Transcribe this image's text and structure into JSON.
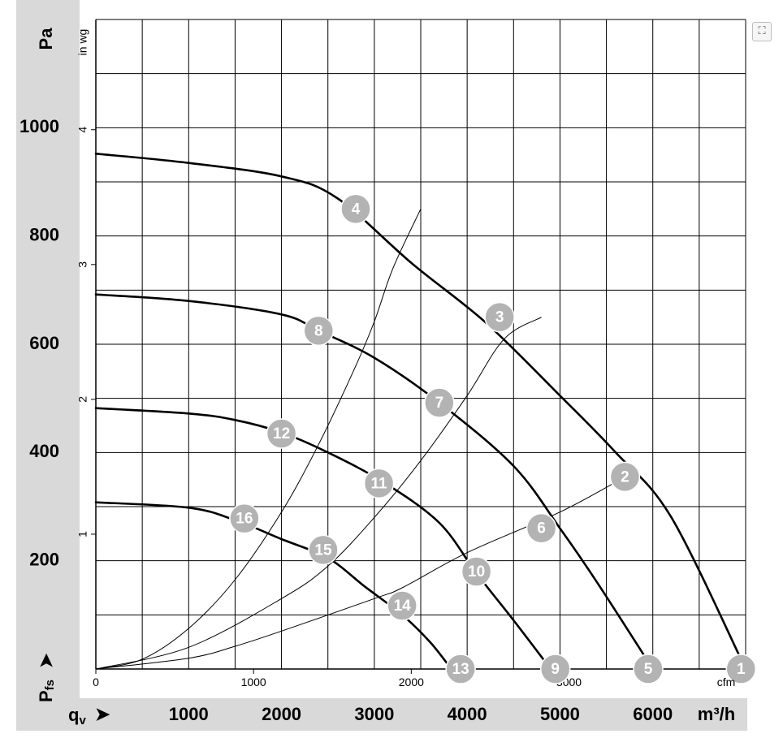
{
  "chart_data": {
    "type": "line",
    "x_axis": {
      "label": "qv",
      "unit": "m³/h",
      "ticks": [
        1000,
        2000,
        3000,
        4000,
        5000,
        6000
      ],
      "range": [
        0,
        7000
      ],
      "secondary": {
        "unit": "cfm",
        "ticks": [
          0,
          1000,
          2000,
          3000
        ]
      }
    },
    "y_axis": {
      "label": "Pfs",
      "unit": "Pa",
      "ticks": [
        200,
        400,
        600,
        800,
        1000
      ],
      "range": [
        0,
        1200
      ],
      "secondary": {
        "unit": "in wg",
        "ticks": [
          1,
          2,
          3,
          4
        ]
      }
    },
    "grid": true,
    "curves": [
      {
        "points": [
          [
            0,
            952
          ],
          [
            1000,
            935
          ],
          [
            2000,
            910
          ],
          [
            2600,
            870
          ],
          [
            3400,
            750
          ],
          [
            4200,
            640
          ],
          [
            5000,
            505
          ],
          [
            5600,
            400
          ],
          [
            6200,
            280
          ],
          [
            7000,
            0
          ]
        ]
      },
      {
        "points": [
          [
            0,
            692
          ],
          [
            1000,
            680
          ],
          [
            2000,
            655
          ],
          [
            2400,
            625
          ],
          [
            3000,
            575
          ],
          [
            3700,
            492
          ],
          [
            4500,
            375
          ],
          [
            5000,
            260
          ],
          [
            5400,
            160
          ],
          [
            6000,
            0
          ]
        ]
      },
      {
        "points": [
          [
            0,
            482
          ],
          [
            1000,
            472
          ],
          [
            1500,
            460
          ],
          [
            2000,
            437
          ],
          [
            2500,
            400
          ],
          [
            3100,
            345
          ],
          [
            3700,
            270
          ],
          [
            4100,
            177
          ],
          [
            4500,
            90
          ],
          [
            4900,
            0
          ]
        ]
      },
      {
        "points": [
          [
            0,
            308
          ],
          [
            1000,
            298
          ],
          [
            1500,
            275
          ],
          [
            2000,
            240
          ],
          [
            2500,
            205
          ],
          [
            2900,
            152
          ],
          [
            3300,
            100
          ],
          [
            3600,
            50
          ],
          [
            3830,
            0
          ]
        ]
      }
    ],
    "system_lines": [
      {
        "points": [
          [
            0,
            0
          ],
          [
            500,
            18
          ],
          [
            1000,
            75
          ],
          [
            1500,
            165
          ],
          [
            2000,
            290
          ],
          [
            2400,
            415
          ],
          [
            2800,
            560
          ],
          [
            3000,
            642
          ],
          [
            3200,
            740
          ],
          [
            3500,
            850
          ]
        ]
      },
      {
        "points": [
          [
            0,
            0
          ],
          [
            1000,
            40
          ],
          [
            2000,
            130
          ],
          [
            2500,
            190
          ],
          [
            3000,
            280
          ],
          [
            3500,
            385
          ],
          [
            4000,
            505
          ],
          [
            4400,
            610
          ],
          [
            4800,
            650
          ]
        ]
      },
      {
        "points": [
          [
            0,
            0
          ],
          [
            1000,
            20
          ],
          [
            1500,
            42
          ],
          [
            2000,
            70
          ],
          [
            3000,
            130
          ],
          [
            3300,
            150
          ],
          [
            4000,
            215
          ],
          [
            5000,
            290
          ],
          [
            5700,
            355
          ]
        ]
      }
    ],
    "operating_points": [
      {
        "label": "1",
        "x": 6950,
        "y": 0
      },
      {
        "label": "2",
        "x": 5700,
        "y": 355
      },
      {
        "label": "3",
        "x": 4350,
        "y": 650
      },
      {
        "label": "4",
        "x": 2800,
        "y": 850
      },
      {
        "label": "5",
        "x": 5950,
        "y": 0
      },
      {
        "label": "6",
        "x": 4800,
        "y": 260
      },
      {
        "label": "7",
        "x": 3700,
        "y": 492
      },
      {
        "label": "8",
        "x": 2400,
        "y": 625
      },
      {
        "label": "9",
        "x": 4950,
        "y": 0
      },
      {
        "label": "10",
        "x": 4100,
        "y": 180
      },
      {
        "label": "11",
        "x": 3050,
        "y": 343
      },
      {
        "label": "12",
        "x": 2000,
        "y": 435
      },
      {
        "label": "13",
        "x": 3930,
        "y": 0
      },
      {
        "label": "14",
        "x": 3300,
        "y": 117
      },
      {
        "label": "15",
        "x": 2450,
        "y": 220
      },
      {
        "label": "16",
        "x": 1600,
        "y": 278
      }
    ]
  },
  "labels": {
    "y_unit_primary": "Pa",
    "y_unit_secondary": "in wg",
    "y_axis_name_main": "P",
    "y_axis_name_sub": "fs",
    "x_axis_name_main": "q",
    "x_axis_name_sub": "v",
    "x_unit_primary": "m³/h",
    "x_unit_secondary": "cfm",
    "arrow": "➤"
  },
  "expand_icon": "⛶"
}
